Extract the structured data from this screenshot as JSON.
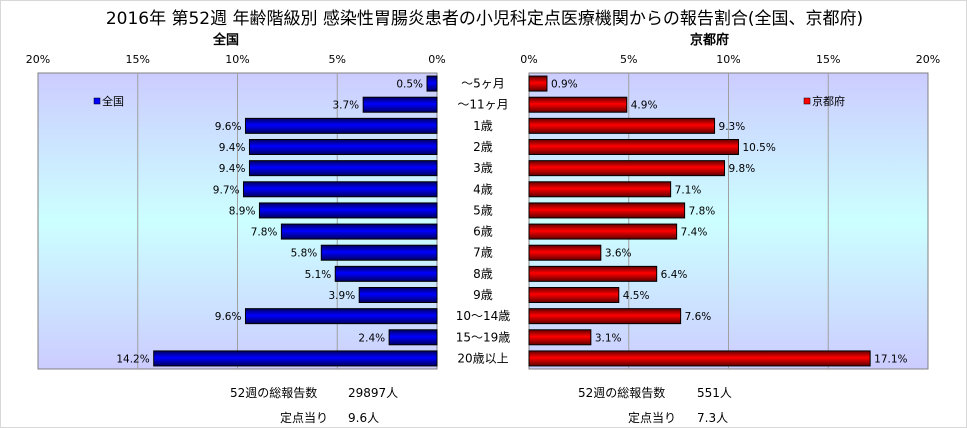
{
  "title": "2016年 第52週 年齢階級別 感染性胃腸炎患者の小児科定点医療機関からの報告割合(全国、京都府)",
  "colors": {
    "national": "#0000ff",
    "kyoto": "#ff0000",
    "bg_top": "#ccccff",
    "bg_mid": "#ccffff"
  },
  "chart_data": [
    {
      "type": "bar",
      "orientation": "horizontal",
      "title": "全国",
      "legend": "全国",
      "legend_position": "top-left",
      "direction": "right-to-left",
      "xlim": [
        0,
        20
      ],
      "ticks": [
        "20%",
        "15%",
        "10%",
        "5%",
        "0%"
      ],
      "categories": [
        "～5ヶ月",
        "～11ヶ月",
        "1歳",
        "2歳",
        "3歳",
        "4歳",
        "5歳",
        "6歳",
        "7歳",
        "8歳",
        "9歳",
        "10～14歳",
        "15～19歳",
        "20歳以上"
      ],
      "values": [
        0.5,
        3.7,
        9.6,
        9.4,
        9.4,
        9.7,
        8.9,
        7.8,
        5.8,
        5.1,
        3.9,
        9.6,
        2.4,
        14.2
      ],
      "labels": [
        "0.5%",
        "3.7%",
        "9.6%",
        "9.4%",
        "9.4%",
        "9.7%",
        "8.9%",
        "7.8%",
        "5.8%",
        "5.1%",
        "3.9%",
        "9.6%",
        "2.4%",
        "14.2%"
      ]
    },
    {
      "type": "bar",
      "orientation": "horizontal",
      "title": "京都府",
      "legend": "京都府",
      "legend_position": "top-right",
      "direction": "left-to-right",
      "xlim": [
        0,
        20
      ],
      "ticks": [
        "0%",
        "5%",
        "10%",
        "15%",
        "20%"
      ],
      "values": [
        0.9,
        4.9,
        9.3,
        10.5,
        9.8,
        7.1,
        7.8,
        7.4,
        3.6,
        6.4,
        4.5,
        7.6,
        3.1,
        17.1
      ],
      "labels": [
        "0.9%",
        "4.9%",
        "9.3%",
        "10.5%",
        "9.8%",
        "7.1%",
        "7.8%",
        "7.4%",
        "3.6%",
        "6.4%",
        "4.5%",
        "7.6%",
        "3.1%",
        "17.1%"
      ]
    }
  ],
  "footer": {
    "national": {
      "total_label": "52週の総報告数",
      "total_value": "29897人",
      "per_label": "定点当り",
      "per_value": "9.6人"
    },
    "kyoto": {
      "total_label": "52週の総報告数",
      "total_value": "551人",
      "per_label": "定点当り",
      "per_value": "7.3人"
    }
  }
}
